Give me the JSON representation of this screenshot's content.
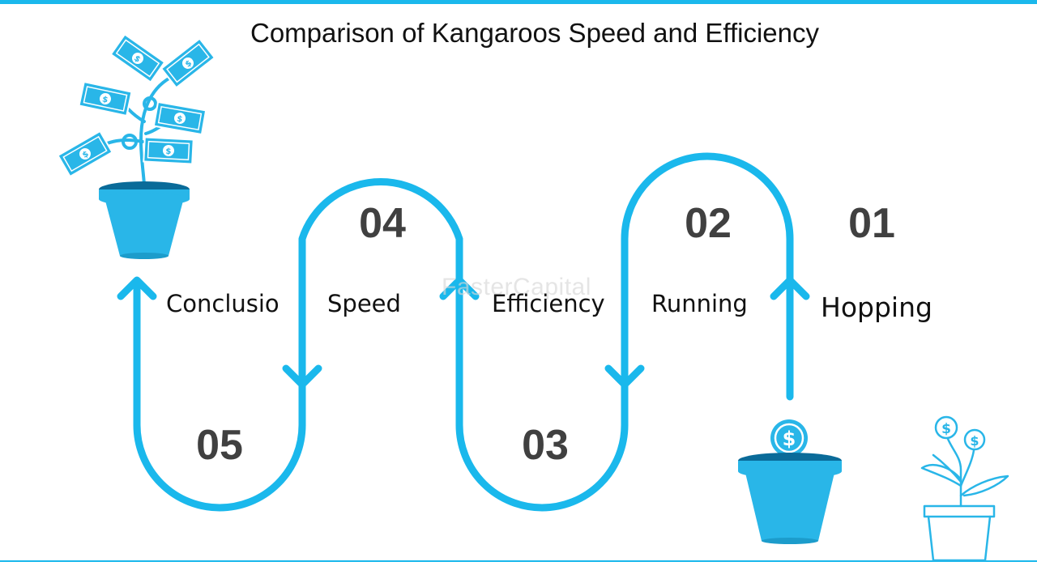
{
  "title": "Comparison of Kangaroos Speed and Efficiency",
  "watermark": "FasterCapital",
  "colors": {
    "accent": "#1ab8ec",
    "pot": "#29b6e8",
    "pot_dark": "#0a6b99",
    "number": "#404040"
  },
  "steps": [
    {
      "number": "01",
      "label": "Hopping"
    },
    {
      "number": "02",
      "label": "Running"
    },
    {
      "number": "03",
      "label": "Efficiency"
    },
    {
      "number": "04",
      "label": "Speed"
    },
    {
      "number": "05",
      "label": "Conclusio"
    }
  ],
  "icons": [
    "money-tree-pot-icon",
    "coin-pot-icon",
    "dollar-plant-outline-icon",
    "arrow-up-icon",
    "arrow-down-icon"
  ]
}
